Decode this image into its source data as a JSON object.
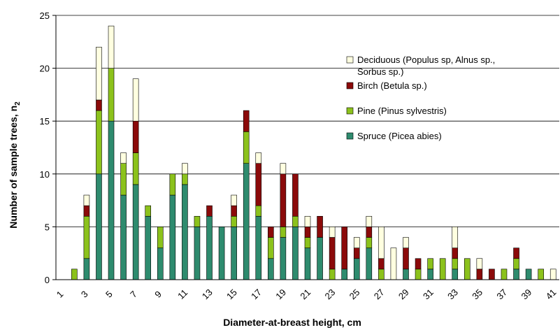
{
  "chart_data": {
    "type": "bar",
    "stacked": true,
    "xlabel": "Diameter-at-breast height, cm",
    "ylabel": "Number of sample trees, n",
    "ylabel_subscript": "2",
    "ylim": [
      0,
      25
    ],
    "yticks": [
      0,
      5,
      10,
      15,
      20,
      25
    ],
    "grid": "horizontal",
    "legend_position": "right",
    "categories": [
      1,
      2,
      3,
      4,
      5,
      6,
      7,
      8,
      9,
      10,
      11,
      12,
      13,
      14,
      15,
      16,
      17,
      18,
      19,
      20,
      21,
      22,
      23,
      24,
      25,
      26,
      27,
      28,
      29,
      30,
      31,
      32,
      33,
      34,
      35,
      36,
      37,
      38,
      39,
      40,
      41
    ],
    "xtick_labels": [
      "1",
      "3",
      "5",
      "7",
      "9",
      "11",
      "13",
      "15",
      "17",
      "19",
      "21",
      "23",
      "25",
      "27",
      "29",
      "31",
      "33",
      "35",
      "37",
      "39",
      "41"
    ],
    "series": [
      {
        "name": "Spruce (Picea abies)",
        "color": "#2E8B6E",
        "values": [
          0,
          0,
          2,
          10,
          15,
          8,
          9,
          6,
          3,
          8,
          9,
          5,
          6,
          5,
          5,
          11,
          6,
          2,
          4,
          5,
          3,
          4,
          0,
          1,
          2,
          3,
          0,
          0,
          1,
          0,
          1,
          0,
          1,
          0,
          0,
          0,
          0,
          1,
          1,
          0,
          0
        ]
      },
      {
        "name": "Pine (Pinus sylvestris)",
        "color": "#8CC21C",
        "values": [
          0,
          1,
          4,
          6,
          5,
          3,
          3,
          1,
          2,
          2,
          1,
          1,
          0,
          0,
          1,
          3,
          1,
          2,
          1,
          1,
          1,
          0,
          1,
          0,
          0,
          1,
          1,
          0,
          0,
          1,
          1,
          2,
          1,
          2,
          0,
          0,
          1,
          1,
          0,
          1,
          0
        ]
      },
      {
        "name": "Birch (Betula sp.)",
        "color": "#8B0A0A",
        "values": [
          0,
          0,
          1,
          1,
          0,
          0,
          3,
          0,
          0,
          0,
          0,
          0,
          1,
          0,
          1,
          2,
          4,
          1,
          5,
          4,
          1,
          2,
          3,
          4,
          1,
          1,
          1,
          0,
          2,
          1,
          0,
          0,
          1,
          0,
          1,
          1,
          0,
          1,
          0,
          0,
          0
        ]
      },
      {
        "name": "Deciduous (Populus sp, Alnus sp., Sorbus sp.)",
        "color": "#FFFFE0",
        "values": [
          0,
          0,
          1,
          5,
          4,
          1,
          4,
          0,
          0,
          0,
          1,
          0,
          0,
          0,
          1,
          0,
          1,
          0,
          1,
          0,
          1,
          0,
          1,
          0,
          1,
          1,
          3,
          3,
          1,
          0,
          0,
          0,
          2,
          0,
          1,
          0,
          0,
          0,
          0,
          0,
          1
        ]
      }
    ]
  }
}
